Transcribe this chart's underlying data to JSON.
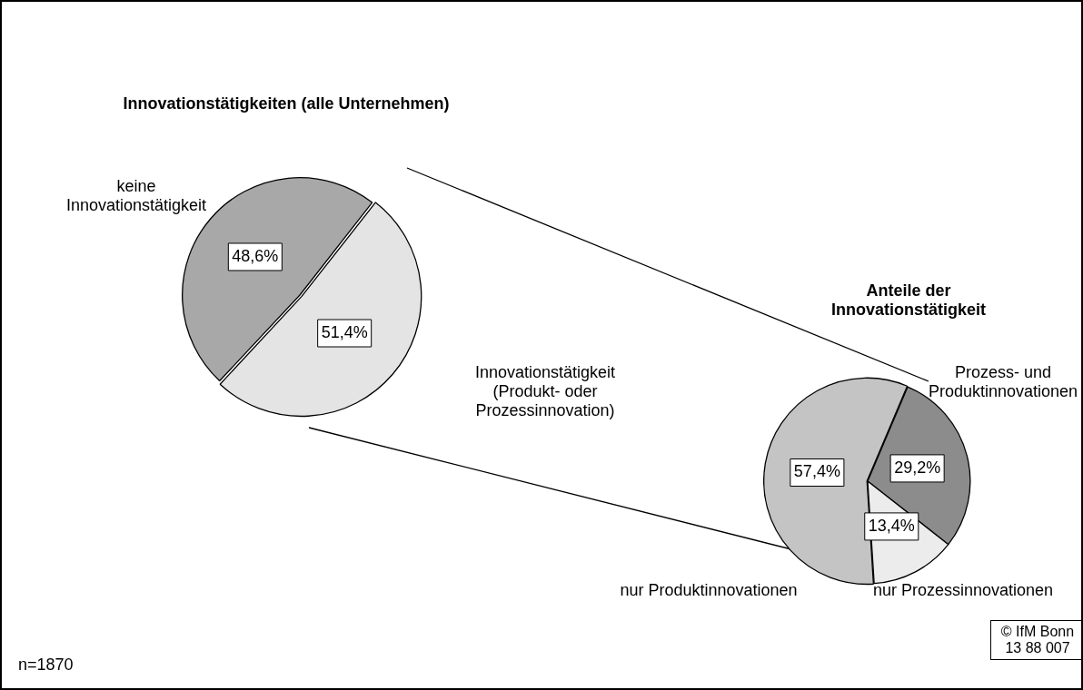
{
  "chart_data": [
    {
      "type": "pie",
      "title": "Innovationstätigkeiten (alle Unternehmen)",
      "categories": [
        "Innovationstätigkeit (Produkt- oder Prozessinnovation)",
        "keine Innovationstätigkeit"
      ],
      "values": [
        51.4,
        48.6
      ],
      "colors": [
        "#e4e4e4",
        "#a8a8a8"
      ],
      "value_labels": [
        "51,4%",
        "48,6%"
      ],
      "legend": false,
      "annotations": [
        "n=1870"
      ]
    },
    {
      "type": "pie",
      "title": "Anteile der Innovationstätigkeit",
      "categories": [
        "Prozess- und Produktinnovationen",
        "nur Prozessinnovationen",
        "nur Produktinnovationen"
      ],
      "values": [
        29.2,
        13.4,
        57.4
      ],
      "colors": [
        "#8c8c8c",
        "#ececec",
        "#c4c4c4"
      ],
      "value_labels": [
        "29,2%",
        "13,4%",
        "57,4%"
      ],
      "legend": false,
      "annotations": [
        "© IfM Bonn 13 88 007"
      ]
    }
  ]
}
